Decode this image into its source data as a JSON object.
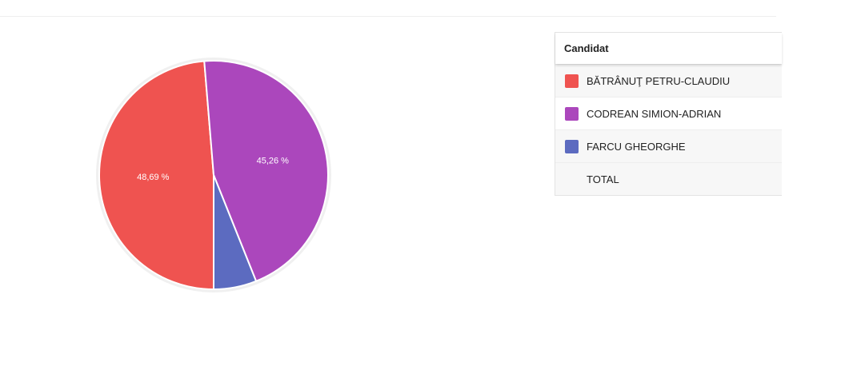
{
  "chart_data": {
    "type": "pie",
    "categories": [
      "BĂTRÂNUŢ PETRU-CLAUDIU",
      "CODREAN SIMION-ADRIAN",
      "FARCU GHEORGHE"
    ],
    "values": [
      48.69,
      45.26,
      6.05
    ],
    "value_labels": [
      "48,69 %",
      "45,26 %",
      null
    ],
    "colors": [
      "#ef5350",
      "#ab47bc",
      "#5c6bc0"
    ],
    "legend_header": "Candidat",
    "total_label": "TOTAL"
  }
}
